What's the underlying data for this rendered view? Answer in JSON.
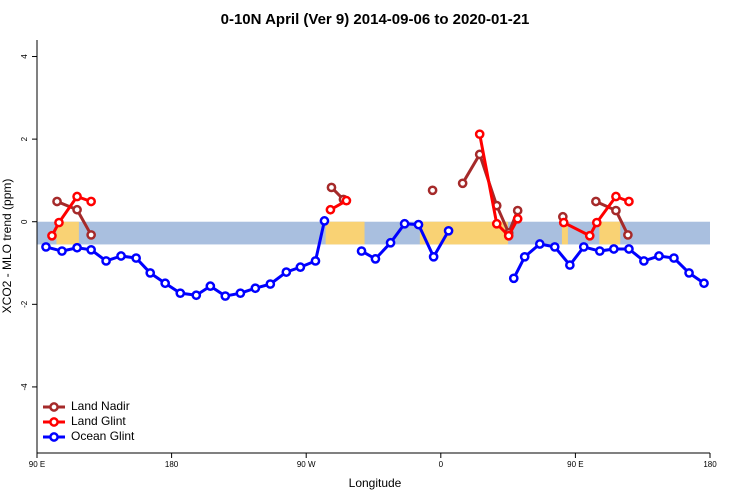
{
  "chart_data": {
    "type": "line",
    "title": "0-10N April (Ver 9)   2014-09-06 to 2020-01-21",
    "x_label": "Longitude",
    "y_label": "XCO2 - MLO trend (ppm)",
    "xlim": [
      90,
      540
    ],
    "ylim": [
      -5.6,
      4.4
    ],
    "xticks": [
      {
        "value": 90,
        "label": "90 E"
      },
      {
        "value": 180,
        "label": "180"
      },
      {
        "value": 270,
        "label": "90 W"
      },
      {
        "value": 360,
        "label": "0"
      },
      {
        "value": 450,
        "label": "90 E"
      },
      {
        "value": 540,
        "label": "180"
      }
    ],
    "yticks": [
      -4,
      -2,
      0,
      2,
      4
    ],
    "band": [
      -0.55,
      0
    ],
    "band_color": "#a9bfdf",
    "land_color": "#f9d274",
    "land_areas": [
      [
        103,
        118
      ],
      [
        283,
        309
      ],
      [
        346,
        405
      ],
      [
        441,
        445
      ],
      [
        466,
        480
      ]
    ],
    "legend": "bottom-left",
    "series": [
      {
        "name": "Land Nadir",
        "color": "#a52a2a",
        "x": [
          103.4,
          116.8,
          126.2,
          null,
          286.9,
          294.9,
          null,
          354.5,
          null,
          374.6,
          386.0,
          397.4,
          405.4,
          411.4,
          null,
          441.6,
          null,
          463.7,
          477.1,
          485.1
        ],
        "values": [
          0.49,
          0.29,
          -0.32,
          null,
          0.83,
          0.54,
          null,
          0.76,
          null,
          0.93,
          1.63,
          0.39,
          -0.27,
          0.27,
          null,
          0.12,
          null,
          0.49,
          0.27,
          -0.32
        ]
      },
      {
        "name": "Land Glint",
        "color": "#ff0000",
        "x": [
          100.0,
          104.7,
          116.8,
          126.2,
          null,
          286.2,
          296.9,
          null,
          386.0,
          397.4,
          405.4,
          411.4,
          null,
          442.2,
          459.6,
          464.3,
          477.1,
          485.8
        ],
        "values": [
          -0.34,
          -0.02,
          0.61,
          0.49,
          null,
          0.29,
          0.51,
          null,
          2.12,
          -0.05,
          -0.34,
          0.07,
          null,
          -0.02,
          -0.34,
          -0.02,
          0.61,
          0.49
        ]
      },
      {
        "name": "Ocean Glint",
        "color": "#0000ff",
        "x": [
          96.0,
          106.7,
          116.8,
          126.2,
          136.2,
          146.2,
          156.3,
          165.7,
          175.7,
          185.8,
          196.5,
          205.9,
          215.9,
          226.0,
          236.0,
          246.0,
          256.7,
          266.1,
          276.2,
          282.2,
          null,
          307.0,
          316.3,
          326.4,
          335.8,
          345.1,
          355.2,
          365.2,
          null,
          408.8,
          416.1,
          426.2,
          436.2,
          446.3,
          455.6,
          466.3,
          475.7,
          485.8,
          495.8,
          505.9,
          515.9,
          526.0,
          536.0
        ],
        "values": [
          -0.61,
          -0.71,
          -0.63,
          -0.68,
          -0.95,
          -0.83,
          -0.88,
          -1.24,
          -1.49,
          -1.73,
          -1.78,
          -1.56,
          -1.8,
          -1.73,
          -1.61,
          -1.51,
          -1.22,
          -1.1,
          -0.95,
          0.02,
          null,
          -0.71,
          -0.9,
          -0.51,
          -0.05,
          -0.07,
          -0.85,
          -0.22,
          null,
          -1.37,
          -0.85,
          -0.54,
          -0.61,
          -1.05,
          -0.61,
          -0.71,
          -0.66,
          -0.66,
          -0.95,
          -0.83,
          -0.88,
          -1.24,
          -1.49
        ]
      }
    ]
  }
}
